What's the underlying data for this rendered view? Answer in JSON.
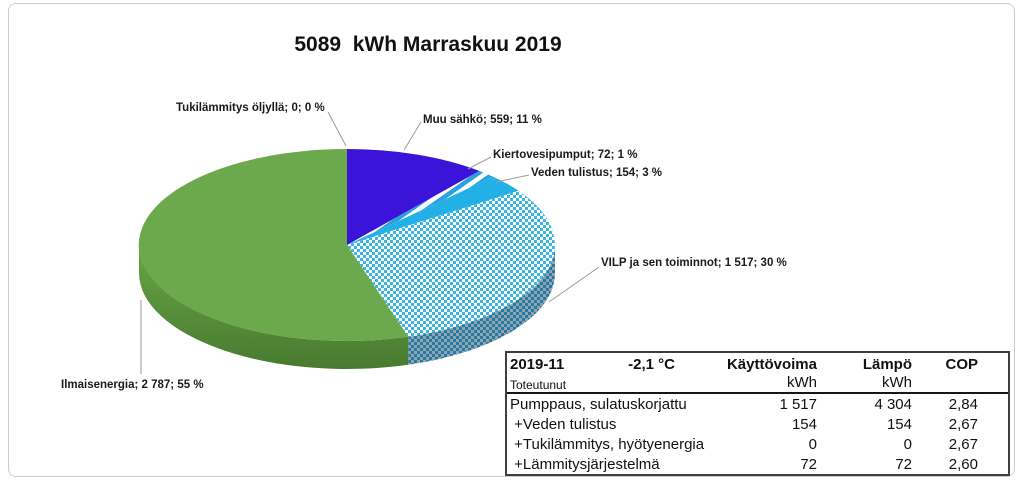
{
  "chart_data": {
    "type": "pie",
    "style": "3d-pie",
    "title": "5089  kWh Marraskuu 2019",
    "total_kwh": 5089,
    "unit": "kWh",
    "slices": [
      {
        "label": "Tukilämmitys öljyllä",
        "value": 0,
        "percent": "0 %",
        "display": "Tukilämmitys öljyllä; 0; 0 %"
      },
      {
        "label": "Muu sähkö",
        "value": 559,
        "percent": "11 %",
        "display": "Muu sähkö; 559; 11 %",
        "color": "#3c14d9"
      },
      {
        "label": "Kiertovesipumput",
        "value": 72,
        "percent": "1 %",
        "display": "Kiertovesipumput; 72; 1 %",
        "pattern": "pat-stripes"
      },
      {
        "label": "Veden tulistus",
        "value": 154,
        "percent": "3 %",
        "display": "Veden tulistus; 154; 3 %",
        "color": "#22b0e6"
      },
      {
        "label": "VILP ja sen toiminnot",
        "value": 1517,
        "percent": "30 %",
        "display": "VILP ja sen toiminnot; 1 517; 30 %",
        "pattern": "pat-checker",
        "side": "pat-checker-side"
      },
      {
        "label": "Ilmaisenergia",
        "value": 2787,
        "percent": "55 %",
        "display": "Ilmaisenergia; 2 787; 55 %",
        "color": "#6ba94c",
        "side": "grad-green-side"
      }
    ],
    "colors": {
      "green": "#6ba94c",
      "green_side_top": "#68a546",
      "green_side_bottom": "#497a30",
      "blue": "#3c14d9",
      "cyan": "#22b0e6",
      "checker_cyan": "#3ab5e2",
      "checker_bg": "#ffffff",
      "checker_side_cyan": "#1d7ca9",
      "checker_side_bg": "#98a3a9",
      "stripe_blue": "#2aa0dc",
      "stripe_bg": "#ffffff",
      "leader_grey": "#9b9b9b"
    }
  },
  "table": {
    "header": {
      "period": "2019-11",
      "temperature": "-2,1 °C",
      "col_kayttovoima": "Käyttövoima",
      "col_lampo": "Lämpö",
      "col_cop": "COP"
    },
    "subheader": {
      "label": "Toteutunut",
      "kayttovoima_unit": "kWh",
      "lampo_unit": "kWh"
    },
    "rows": [
      {
        "label": "Pumppaus, sulatuskorjattu",
        "kayttovoima": "1 517",
        "lampo": "4 304",
        "cop": "2,84"
      },
      {
        "label": " +Veden tulistus",
        "kayttovoima": "154",
        "lampo": "154",
        "cop": "2,67"
      },
      {
        "label": " +Tukilämmitys, hyötyenergia",
        "kayttovoima": "0",
        "lampo": "0",
        "cop": "2,67"
      },
      {
        "label": " +Lämmitysjärjestelmä",
        "kayttovoima": "72",
        "lampo": "72",
        "cop": "2,60"
      }
    ]
  }
}
